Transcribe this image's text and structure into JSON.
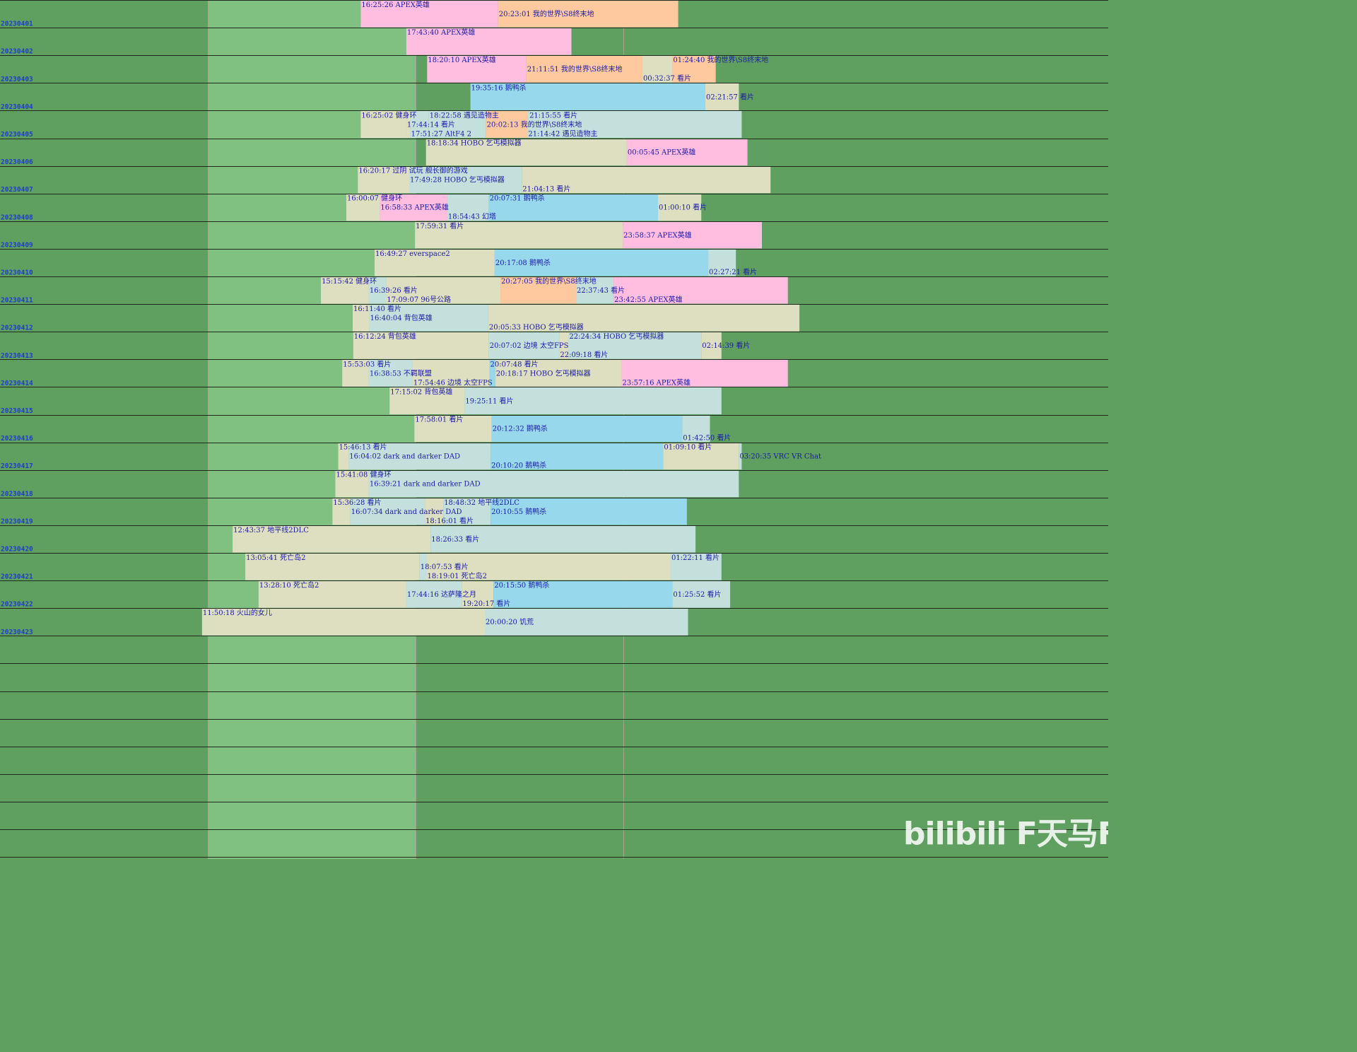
{
  "colors": {
    "background_dark": "#5f9f5f",
    "background_light": "#80c080",
    "row_border": "#1e2a1e",
    "grid_line": "#9aa89a",
    "label_text": "#1a1aa8",
    "date_text": "#1f3fc8",
    "activity_colors": {
      "APEX英雄": "#ffbde0",
      "我的世界\\S8终末地": "#ffc9a0",
      "看片": "#dedec0",
      "鹅鸭杀": "#98d8ec",
      "default": "#c4e0dc"
    }
  },
  "watermark": "bilibili F天马F",
  "chart_data": {
    "type": "timeline",
    "x_axis": {
      "start": "06:00",
      "end": "04:00 (+1 day)"
    },
    "rows": [
      {
        "date": "20230401",
        "segments": [
          {
            "label": "16:25:26 APEX英雄",
            "activity": "APEX英雄",
            "start": "16:25",
            "end": "20:23"
          },
          {
            "label": "20:23:01 我的世界\\S8终末地",
            "activity": "我的世界\\S8终末地",
            "start": "20:23",
            "end": "01:35"
          }
        ]
      },
      {
        "date": "20230402",
        "segments": [
          {
            "label": "17:43:40 APEX英雄",
            "activity": "APEX英雄",
            "start": "17:44",
            "end": "22:30"
          }
        ]
      },
      {
        "date": "20230403",
        "segments": [
          {
            "label": "18:20:10 APEX英雄",
            "activity": "APEX英雄",
            "start": "18:20",
            "end": "21:12"
          },
          {
            "label": "21:11:51 我的世界\\S8终末地",
            "activity": "我的世界\\S8终末地",
            "start": "21:12",
            "end": "00:33"
          },
          {
            "label": "00:32:37 看片",
            "activity": "看片",
            "start": "00:33",
            "end": "01:25"
          },
          {
            "label": "01:24:40 我的世界\\S8终末地",
            "activity": "我的世界\\S8终末地",
            "start": "01:25",
            "end": "02:40"
          }
        ]
      },
      {
        "date": "20230404",
        "segments": [
          {
            "label": "19:35:16 鹅鸭杀",
            "activity": "鹅鸭杀",
            "start": "19:35",
            "end": "02:22"
          },
          {
            "label": "02:21:57 看片",
            "activity": "看片",
            "start": "02:22",
            "end": "03:20"
          }
        ]
      },
      {
        "date": "20230405",
        "segments": [
          {
            "label": "16:25:02 健身环",
            "activity": "看片",
            "start": "16:25",
            "end": "17:44"
          },
          {
            "label": "17:44:14 看片",
            "activity": "看片",
            "start": "17:44",
            "end": "17:51"
          },
          {
            "label": "17:51:27 AltF4 2",
            "activity": "other",
            "start": "17:51",
            "end": "18:23"
          },
          {
            "label": "18:22:58 遇见造物主",
            "activity": "other",
            "start": "18:23",
            "end": "20:02"
          },
          {
            "label": "20:02:13 我的世界\\S8终末地",
            "activity": "我的世界\\S8终末地",
            "start": "20:02",
            "end": "21:14"
          },
          {
            "label": "21:14:42 遇见造物主",
            "activity": "other",
            "start": "21:14",
            "end": "21:16"
          },
          {
            "label": "21:15:55 看片",
            "activity": "other",
            "start": "21:16",
            "end": "03:25"
          }
        ]
      },
      {
        "date": "20230406",
        "segments": [
          {
            "label": "18:18:34 HOBO 乞丐模拟器",
            "activity": "看片",
            "start": "18:18",
            "end": "00:06"
          },
          {
            "label": "00:05:45 APEX英雄",
            "activity": "APEX英雄",
            "start": "00:06",
            "end": "03:35"
          }
        ]
      },
      {
        "date": "20230407",
        "segments": [
          {
            "label": "16:20:17 过阴 试玩 舰长御的游戏",
            "activity": "看片",
            "start": "16:20",
            "end": "17:49"
          },
          {
            "label": "17:49:28 HOBO 乞丐模拟器",
            "activity": "other",
            "start": "17:49",
            "end": "21:04"
          },
          {
            "label": "21:04:13 看片",
            "activity": "看片",
            "start": "21:04",
            "end": "04:15"
          }
        ]
      },
      {
        "date": "20230408",
        "segments": [
          {
            "label": "16:00:07 健身环",
            "activity": "看片",
            "start": "16:00",
            "end": "16:58"
          },
          {
            "label": "16:58:33 APEX英雄",
            "activity": "APEX英雄",
            "start": "16:58",
            "end": "18:55"
          },
          {
            "label": "18:54:43 幻塔",
            "activity": "other",
            "start": "18:55",
            "end": "20:07"
          },
          {
            "label": "20:07:31 鹅鸭杀",
            "activity": "鹅鸭杀",
            "start": "20:07",
            "end": "01:00"
          },
          {
            "label": "01:00:10 看片",
            "activity": "看片",
            "start": "01:00",
            "end": "02:15"
          }
        ]
      },
      {
        "date": "20230409",
        "segments": [
          {
            "label": "17:59:31 看片",
            "activity": "看片",
            "start": "17:59",
            "end": "23:59"
          },
          {
            "label": "23:58:37 APEX英雄",
            "activity": "APEX英雄",
            "start": "23:59",
            "end": "04:00"
          }
        ]
      },
      {
        "date": "20230410",
        "segments": [
          {
            "label": "16:49:27 everspace2",
            "activity": "看片",
            "start": "16:49",
            "end": "20:17"
          },
          {
            "label": "20:17:08 鹅鸭杀",
            "activity": "鹅鸭杀",
            "start": "20:17",
            "end": "02:27"
          },
          {
            "label": "02:27:21 看片",
            "activity": "other",
            "start": "02:27",
            "end": "03:15"
          }
        ]
      },
      {
        "date": "20230411",
        "segments": [
          {
            "label": "15:15:42 健身环",
            "activity": "看片",
            "start": "15:16",
            "end": "16:39"
          },
          {
            "label": "16:39:26 看片",
            "activity": "other",
            "start": "16:39",
            "end": "17:09"
          },
          {
            "label": "17:09:07 96号公路",
            "activity": "看片",
            "start": "17:09",
            "end": "20:27"
          },
          {
            "label": "20:27:05 我的世界\\S8终末地",
            "activity": "我的世界\\S8终末地",
            "start": "20:27",
            "end": "22:38"
          },
          {
            "label": "22:37:43 看片",
            "activity": "other",
            "start": "22:38",
            "end": "23:43"
          },
          {
            "label": "23:42:55 APEX英雄",
            "activity": "APEX英雄",
            "start": "23:43",
            "end": "04:45"
          }
        ]
      },
      {
        "date": "20230412",
        "segments": [
          {
            "label": "16:11:40 看片",
            "activity": "看片",
            "start": "16:11",
            "end": "16:40"
          },
          {
            "label": "16:40:04 背包英雄",
            "activity": "other",
            "start": "16:40",
            "end": "20:06"
          },
          {
            "label": "20:05:33 HOBO 乞丐模拟器",
            "activity": "看片",
            "start": "20:06",
            "end": "05:05"
          }
        ]
      },
      {
        "date": "20230413",
        "segments": [
          {
            "label": "16:12:24 背包英雄",
            "activity": "看片",
            "start": "16:12",
            "end": "20:07"
          },
          {
            "label": "20:07:02 边境 太空FPS",
            "activity": "other",
            "start": "20:07",
            "end": "22:09"
          },
          {
            "label": "22:09:18 看片",
            "activity": "看片",
            "start": "22:09",
            "end": "22:25"
          },
          {
            "label": "22:24:34 HOBO 乞丐模拟器",
            "activity": "other",
            "start": "22:25",
            "end": "02:15"
          },
          {
            "label": "02:14:39 看片",
            "activity": "看片",
            "start": "02:15",
            "end": "02:50"
          }
        ]
      },
      {
        "date": "20230414",
        "segments": [
          {
            "label": "15:53:03 看片",
            "activity": "看片",
            "start": "15:53",
            "end": "16:39"
          },
          {
            "label": "16:38:53 不羁联盟",
            "activity": "other",
            "start": "16:39",
            "end": "17:55"
          },
          {
            "label": "17:54:46 边境 太空FPS",
            "activity": "看片",
            "start": "17:55",
            "end": "20:08"
          },
          {
            "label": "20:07:48 看片",
            "activity": "鹅鸭杀",
            "start": "20:08",
            "end": "20:18"
          },
          {
            "label": "20:18:17 HOBO 乞丐模拟器",
            "activity": "看片",
            "start": "20:18",
            "end": "23:57"
          },
          {
            "label": "23:57:16 APEX英雄",
            "activity": "APEX英雄",
            "start": "23:57",
            "end": "04:45"
          }
        ]
      },
      {
        "date": "20230415",
        "segments": [
          {
            "label": "17:15:02 背包英雄",
            "activity": "看片",
            "start": "17:15",
            "end": "19:25"
          },
          {
            "label": "19:25:11 看片",
            "activity": "other",
            "start": "19:25",
            "end": "02:50"
          }
        ]
      },
      {
        "date": "20230416",
        "segments": [
          {
            "label": "17:58:01 看片",
            "activity": "看片",
            "start": "17:58",
            "end": "20:12"
          },
          {
            "label": "20:12:32 鹅鸭杀",
            "activity": "鹅鸭杀",
            "start": "20:12",
            "end": "01:42"
          },
          {
            "label": "01:42:50 看片",
            "activity": "other",
            "start": "01:42",
            "end": "02:30"
          }
        ]
      },
      {
        "date": "20230417",
        "segments": [
          {
            "label": "15:46:13 看片",
            "activity": "看片",
            "start": "15:46",
            "end": "16:04"
          },
          {
            "label": "16:04:02 dark and darker DAD",
            "activity": "other",
            "start": "16:04",
            "end": "20:10"
          },
          {
            "label": "20:10:20 鹅鸭杀",
            "activity": "鹅鸭杀",
            "start": "20:10",
            "end": "01:09"
          },
          {
            "label": "01:09:10 看片",
            "activity": "看片",
            "start": "01:09",
            "end": "03:20"
          },
          {
            "label": "03:20:35 VRC VR Chat",
            "activity": "other",
            "start": "03:20",
            "end": "03:25"
          }
        ]
      },
      {
        "date": "20230418",
        "segments": [
          {
            "label": "15:41:08 健身环",
            "activity": "看片",
            "start": "15:41",
            "end": "16:39"
          },
          {
            "label": "16:39:21 dark and darker DAD",
            "activity": "other",
            "start": "16:39",
            "end": "03:20"
          }
        ]
      },
      {
        "date": "20230419",
        "segments": [
          {
            "label": "15:36:28 看片",
            "activity": "看片",
            "start": "15:36",
            "end": "16:07"
          },
          {
            "label": "16:07:34 dark and darker DAD",
            "activity": "other",
            "start": "16:07",
            "end": "18:16"
          },
          {
            "label": "18:16:01 看片",
            "activity": "看片",
            "start": "18:16",
            "end": "18:48"
          },
          {
            "label": "18:48:32 地平线2DLC",
            "activity": "other",
            "start": "18:48",
            "end": "20:10"
          },
          {
            "label": "20:10:55 鹅鸭杀",
            "activity": "鹅鸭杀",
            "start": "20:10",
            "end": "01:50"
          }
        ]
      },
      {
        "date": "20230420",
        "segments": [
          {
            "label": "12:43:37 地平线2DLC",
            "activity": "看片",
            "start": "12:43",
            "end": "18:26"
          },
          {
            "label": "18:26:33 看片",
            "activity": "other",
            "start": "18:26",
            "end": "02:05"
          }
        ]
      },
      {
        "date": "20230421",
        "segments": [
          {
            "label": "13:05:41 死亡岛2",
            "activity": "看片",
            "start": "13:05",
            "end": "18:07"
          },
          {
            "label": "18:07:53 看片",
            "activity": "other",
            "start": "18:07",
            "end": "18:19"
          },
          {
            "label": "18:19:01 死亡岛2",
            "activity": "看片",
            "start": "18:19",
            "end": "01:22"
          },
          {
            "label": "01:22:11 看片",
            "activity": "other",
            "start": "01:22",
            "end": "02:50"
          }
        ]
      },
      {
        "date": "20230422",
        "segments": [
          {
            "label": "13:28:10 死亡岛2",
            "activity": "看片",
            "start": "13:28",
            "end": "17:44"
          },
          {
            "label": "17:44:16 达萨隆之月",
            "activity": "other",
            "start": "17:44",
            "end": "19:20"
          },
          {
            "label": "19:20:17 看片",
            "activity": "看片",
            "start": "19:20",
            "end": "20:15"
          },
          {
            "label": "20:15:50 鹅鸭杀",
            "activity": "鹅鸭杀",
            "start": "20:15",
            "end": "01:25"
          },
          {
            "label": "01:25:52 看片",
            "activity": "other",
            "start": "01:25",
            "end": "03:05"
          }
        ]
      },
      {
        "date": "20230423",
        "segments": [
          {
            "label": "11:50:18 火山的女儿",
            "activity": "看片",
            "start": "11:50",
            "end": "20:00"
          },
          {
            "label": "20:00:20 饥荒",
            "activity": "other",
            "start": "20:00",
            "end": "01:52"
          }
        ]
      }
    ],
    "empty_rows": 8
  }
}
